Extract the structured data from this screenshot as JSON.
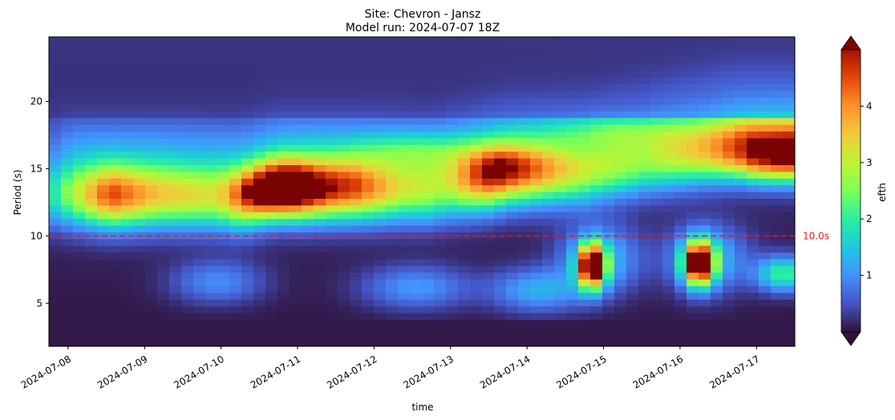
{
  "chart_data": {
    "type": "heatmap",
    "title": "Site: Chevron - Jansz",
    "subtitle": "Model run: 2024-07-07 18Z",
    "xlabel": "time",
    "ylabel": "Period (s)",
    "xlim": [
      "2024-07-07T18:00",
      "2024-07-17T12:00"
    ],
    "ylim": [
      1.8,
      24.8
    ],
    "x_ticks": [
      "2024-07-08",
      "2024-07-09",
      "2024-07-10",
      "2024-07-11",
      "2024-07-12",
      "2024-07-13",
      "2024-07-14",
      "2024-07-15",
      "2024-07-16",
      "2024-07-17"
    ],
    "y_ticks": [
      5,
      10,
      15,
      20
    ],
    "colorbar": {
      "label": "efth",
      "range": [
        0,
        5
      ],
      "ticks": [
        1,
        2,
        3,
        4
      ],
      "colormap": "turbo",
      "extend": "both"
    },
    "reference_line": {
      "value": 10.0,
      "label": "10.0s",
      "color": "#e41a1c",
      "style": "dashed"
    },
    "blobs": [
      {
        "time": "2024-07-08T13:00",
        "period": 13.0,
        "peak": 4.3
      },
      {
        "time": "2024-07-09T18:00",
        "period": 12.5,
        "peak": 3.2
      },
      {
        "time": "2024-07-11T00:00",
        "period": 13.8,
        "peak": 6.0
      },
      {
        "time": "2024-07-12T00:00",
        "period": 12.8,
        "peak": 4.5
      },
      {
        "time": "2024-07-13T18:00",
        "period": 15.0,
        "peak": 4.4
      },
      {
        "time": "2024-07-14T21:00",
        "period": 7.8,
        "peak": 5.6
      },
      {
        "time": "2024-07-16T06:00",
        "period": 8.0,
        "peak": 5.6
      },
      {
        "time": "2024-07-17T06:00",
        "period": 15.0,
        "peak": 4.8
      },
      {
        "time": "2024-07-17T10:00",
        "period": 7.0,
        "peak": 2.6
      }
    ],
    "grid": false
  }
}
